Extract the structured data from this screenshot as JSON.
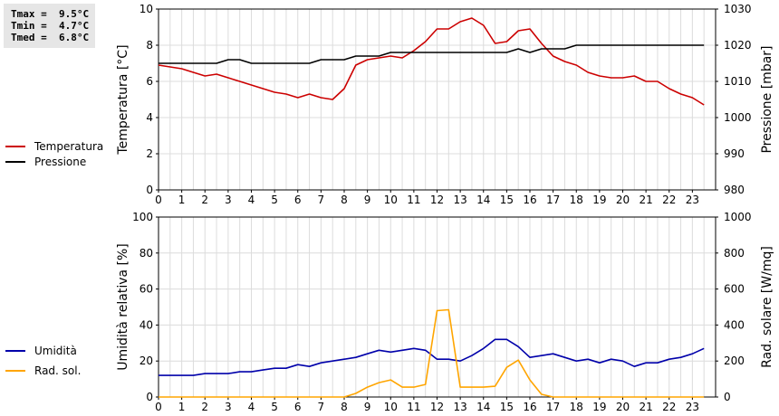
{
  "stats": {
    "tmax": "Tmax =  9.5°C",
    "tmin": "Tmin =  4.7°C",
    "tmed": "Tmed =  6.8°C"
  },
  "legend_top": [
    {
      "label": "Temperatura",
      "color": "#cc0000"
    },
    {
      "label": "Pressione",
      "color": "#000000"
    }
  ],
  "legend_bottom": [
    {
      "label": "Umidità",
      "color": "#0000aa"
    },
    {
      "label": "Rad. sol.",
      "color": "#ffa500"
    }
  ],
  "chart_data": [
    {
      "type": "line",
      "xlabel": "",
      "ylabel": "Temperatura [°C]",
      "y2label": "Pressione [mbar]",
      "xlim": [
        0,
        24
      ],
      "ylim": [
        0,
        10
      ],
      "y2lim": [
        980,
        1030
      ],
      "x_ticks": [
        0,
        1,
        2,
        3,
        4,
        5,
        6,
        7,
        8,
        9,
        10,
        11,
        12,
        13,
        14,
        15,
        16,
        17,
        18,
        19,
        20,
        21,
        22,
        23
      ],
      "y_ticks": [
        0,
        2,
        4,
        6,
        8,
        10
      ],
      "y2_ticks": [
        980,
        990,
        1000,
        1010,
        1020,
        1030
      ],
      "grid": true,
      "series": [
        {
          "name": "Temperatura",
          "axis": "left",
          "color": "#cc0000",
          "x": [
            0,
            0.5,
            1,
            1.5,
            2,
            2.5,
            3,
            3.5,
            4,
            4.5,
            5,
            5.5,
            6,
            6.5,
            7,
            7.5,
            8,
            8.5,
            9,
            9.5,
            10,
            10.5,
            11,
            11.5,
            12,
            12.5,
            13,
            13.5,
            14,
            14.5,
            15,
            15.5,
            16,
            16.5,
            17,
            17.5,
            18,
            18.5,
            19,
            19.5,
            20,
            20.5,
            21,
            21.5,
            22,
            22.5,
            23,
            23.5
          ],
          "values": [
            6.9,
            6.8,
            6.7,
            6.5,
            6.3,
            6.4,
            6.2,
            6.0,
            5.8,
            5.6,
            5.4,
            5.3,
            5.1,
            5.3,
            5.1,
            5.0,
            5.6,
            6.9,
            7.2,
            7.3,
            7.4,
            7.3,
            7.7,
            8.2,
            8.9,
            8.9,
            9.3,
            9.5,
            9.1,
            8.1,
            8.2,
            8.8,
            8.9,
            8.1,
            7.4,
            7.1,
            6.9,
            6.5,
            6.3,
            6.2,
            6.2,
            6.3,
            6.0,
            6.0,
            5.6,
            5.3,
            5.1,
            4.7
          ]
        },
        {
          "name": "Pressione",
          "axis": "right",
          "color": "#000000",
          "x": [
            0,
            0.5,
            1,
            1.5,
            2,
            2.5,
            3,
            3.5,
            4,
            4.5,
            5,
            5.5,
            6,
            6.5,
            7,
            7.5,
            8,
            8.5,
            9,
            9.5,
            10,
            10.5,
            11,
            11.5,
            12,
            12.5,
            13,
            13.5,
            14,
            14.5,
            15,
            15.5,
            16,
            16.5,
            17,
            17.5,
            18,
            18.5,
            19,
            19.5,
            20,
            20.5,
            21,
            21.5,
            22,
            22.5,
            23,
            23.5
          ],
          "values": [
            1015,
            1015,
            1015,
            1015,
            1015,
            1015,
            1016,
            1016,
            1015,
            1015,
            1015,
            1015,
            1015,
            1015,
            1016,
            1016,
            1016,
            1017,
            1017,
            1017,
            1018,
            1018,
            1018,
            1018,
            1018,
            1018,
            1018,
            1018,
            1018,
            1018,
            1018,
            1019,
            1018,
            1019,
            1019,
            1019,
            1020,
            1020,
            1020,
            1020,
            1020,
            1020,
            1020,
            1020,
            1020,
            1020,
            1020,
            1020
          ]
        }
      ]
    },
    {
      "type": "line",
      "xlabel": "",
      "ylabel": "Umidità relativa [%]",
      "y2label": "Rad. solare [W/mq]",
      "xlim": [
        0,
        24
      ],
      "ylim": [
        0,
        100
      ],
      "y2lim": [
        0,
        1000
      ],
      "x_ticks": [
        0,
        1,
        2,
        3,
        4,
        5,
        6,
        7,
        8,
        9,
        10,
        11,
        12,
        13,
        14,
        15,
        16,
        17,
        18,
        19,
        20,
        21,
        22,
        23
      ],
      "y_ticks": [
        0,
        20,
        40,
        60,
        80,
        100
      ],
      "y2_ticks": [
        0,
        200,
        400,
        600,
        800,
        1000
      ],
      "grid": true,
      "series": [
        {
          "name": "Umidità",
          "axis": "left",
          "color": "#0000aa",
          "x": [
            0,
            0.5,
            1,
            1.5,
            2,
            2.5,
            3,
            3.5,
            4,
            4.5,
            5,
            5.5,
            6,
            6.5,
            7,
            7.5,
            8,
            8.5,
            9,
            9.5,
            10,
            10.5,
            11,
            11.5,
            12,
            12.5,
            13,
            13.5,
            14,
            14.5,
            15,
            15.5,
            16,
            16.5,
            17,
            17.5,
            18,
            18.5,
            19,
            19.5,
            20,
            20.5,
            21,
            21.5,
            22,
            22.5,
            23,
            23.5
          ],
          "values": [
            12,
            12,
            12,
            12,
            13,
            13,
            13,
            14,
            14,
            15,
            16,
            16,
            18,
            17,
            19,
            20,
            21,
            22,
            24,
            26,
            25,
            26,
            27,
            26,
            21,
            21,
            20,
            23,
            27,
            32,
            32,
            28,
            22,
            23,
            24,
            22,
            20,
            21,
            19,
            21,
            20,
            17,
            19,
            19,
            21,
            22,
            24,
            27
          ]
        },
        {
          "name": "Rad. sol.",
          "axis": "right",
          "color": "#ffa500",
          "x": [
            0,
            0.5,
            1,
            1.5,
            2,
            2.5,
            3,
            3.5,
            4,
            4.5,
            5,
            5.5,
            6,
            6.5,
            7,
            7.5,
            8,
            8.5,
            9,
            9.5,
            10,
            10.5,
            11,
            11.5,
            12,
            12.5,
            13,
            13.5,
            14,
            14.5,
            15,
            15.5,
            16,
            16.5,
            17,
            17.5,
            18,
            18.5,
            19,
            19.5,
            20,
            20.5,
            21,
            21.5,
            22,
            22.5,
            23,
            23.5
          ],
          "values": [
            0,
            0,
            0,
            0,
            0,
            0,
            0,
            0,
            0,
            0,
            0,
            0,
            0,
            0,
            0,
            0,
            0,
            20,
            55,
            80,
            95,
            55,
            55,
            70,
            480,
            485,
            55,
            55,
            55,
            60,
            165,
            205,
            95,
            15,
            0,
            0,
            0,
            0,
            0,
            0,
            0,
            0,
            0,
            0,
            0,
            0,
            0,
            0
          ]
        }
      ]
    }
  ]
}
